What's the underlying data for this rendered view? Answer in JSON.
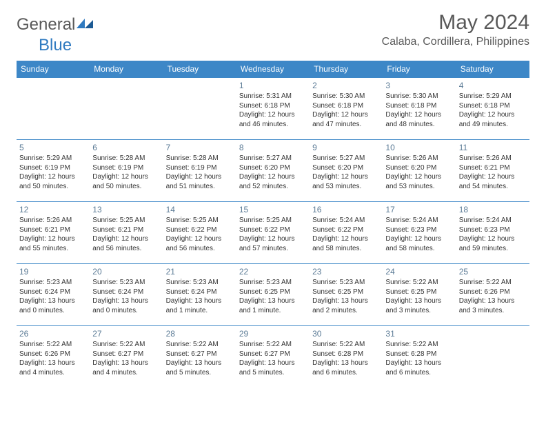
{
  "brand": {
    "general": "General",
    "blue": "Blue"
  },
  "title": "May 2024",
  "location": "Calaba, Cordillera, Philippines",
  "colors": {
    "header_bg": "#3d87c7",
    "header_text": "#ffffff",
    "grid_line": "#3d87c7",
    "text": "#333333",
    "title_text": "#595959",
    "daynum_text": "#5a7a95",
    "brand_blue": "#2f7ac0",
    "background": "#ffffff"
  },
  "typography": {
    "title_fontsize": 30,
    "location_fontsize": 16,
    "weekday_fontsize": 12,
    "daynum_fontsize": 12,
    "info_fontsize": 10
  },
  "weekdays": [
    "Sunday",
    "Monday",
    "Tuesday",
    "Wednesday",
    "Thursday",
    "Friday",
    "Saturday"
  ],
  "weeks": [
    [
      null,
      null,
      null,
      {
        "d": "1",
        "sr": "5:31 AM",
        "ss": "6:18 PM",
        "dl": "12 hours and 46 minutes."
      },
      {
        "d": "2",
        "sr": "5:30 AM",
        "ss": "6:18 PM",
        "dl": "12 hours and 47 minutes."
      },
      {
        "d": "3",
        "sr": "5:30 AM",
        "ss": "6:18 PM",
        "dl": "12 hours and 48 minutes."
      },
      {
        "d": "4",
        "sr": "5:29 AM",
        "ss": "6:18 PM",
        "dl": "12 hours and 49 minutes."
      }
    ],
    [
      {
        "d": "5",
        "sr": "5:29 AM",
        "ss": "6:19 PM",
        "dl": "12 hours and 50 minutes."
      },
      {
        "d": "6",
        "sr": "5:28 AM",
        "ss": "6:19 PM",
        "dl": "12 hours and 50 minutes."
      },
      {
        "d": "7",
        "sr": "5:28 AM",
        "ss": "6:19 PM",
        "dl": "12 hours and 51 minutes."
      },
      {
        "d": "8",
        "sr": "5:27 AM",
        "ss": "6:20 PM",
        "dl": "12 hours and 52 minutes."
      },
      {
        "d": "9",
        "sr": "5:27 AM",
        "ss": "6:20 PM",
        "dl": "12 hours and 53 minutes."
      },
      {
        "d": "10",
        "sr": "5:26 AM",
        "ss": "6:20 PM",
        "dl": "12 hours and 53 minutes."
      },
      {
        "d": "11",
        "sr": "5:26 AM",
        "ss": "6:21 PM",
        "dl": "12 hours and 54 minutes."
      }
    ],
    [
      {
        "d": "12",
        "sr": "5:26 AM",
        "ss": "6:21 PM",
        "dl": "12 hours and 55 minutes."
      },
      {
        "d": "13",
        "sr": "5:25 AM",
        "ss": "6:21 PM",
        "dl": "12 hours and 56 minutes."
      },
      {
        "d": "14",
        "sr": "5:25 AM",
        "ss": "6:22 PM",
        "dl": "12 hours and 56 minutes."
      },
      {
        "d": "15",
        "sr": "5:25 AM",
        "ss": "6:22 PM",
        "dl": "12 hours and 57 minutes."
      },
      {
        "d": "16",
        "sr": "5:24 AM",
        "ss": "6:22 PM",
        "dl": "12 hours and 58 minutes."
      },
      {
        "d": "17",
        "sr": "5:24 AM",
        "ss": "6:23 PM",
        "dl": "12 hours and 58 minutes."
      },
      {
        "d": "18",
        "sr": "5:24 AM",
        "ss": "6:23 PM",
        "dl": "12 hours and 59 minutes."
      }
    ],
    [
      {
        "d": "19",
        "sr": "5:23 AM",
        "ss": "6:24 PM",
        "dl": "13 hours and 0 minutes."
      },
      {
        "d": "20",
        "sr": "5:23 AM",
        "ss": "6:24 PM",
        "dl": "13 hours and 0 minutes."
      },
      {
        "d": "21",
        "sr": "5:23 AM",
        "ss": "6:24 PM",
        "dl": "13 hours and 1 minute."
      },
      {
        "d": "22",
        "sr": "5:23 AM",
        "ss": "6:25 PM",
        "dl": "13 hours and 1 minute."
      },
      {
        "d": "23",
        "sr": "5:23 AM",
        "ss": "6:25 PM",
        "dl": "13 hours and 2 minutes."
      },
      {
        "d": "24",
        "sr": "5:22 AM",
        "ss": "6:25 PM",
        "dl": "13 hours and 3 minutes."
      },
      {
        "d": "25",
        "sr": "5:22 AM",
        "ss": "6:26 PM",
        "dl": "13 hours and 3 minutes."
      }
    ],
    [
      {
        "d": "26",
        "sr": "5:22 AM",
        "ss": "6:26 PM",
        "dl": "13 hours and 4 minutes."
      },
      {
        "d": "27",
        "sr": "5:22 AM",
        "ss": "6:27 PM",
        "dl": "13 hours and 4 minutes."
      },
      {
        "d": "28",
        "sr": "5:22 AM",
        "ss": "6:27 PM",
        "dl": "13 hours and 5 minutes."
      },
      {
        "d": "29",
        "sr": "5:22 AM",
        "ss": "6:27 PM",
        "dl": "13 hours and 5 minutes."
      },
      {
        "d": "30",
        "sr": "5:22 AM",
        "ss": "6:28 PM",
        "dl": "13 hours and 6 minutes."
      },
      {
        "d": "31",
        "sr": "5:22 AM",
        "ss": "6:28 PM",
        "dl": "13 hours and 6 minutes."
      },
      null
    ]
  ],
  "labels": {
    "sunrise": "Sunrise: ",
    "sunset": "Sunset: ",
    "daylight": "Daylight: "
  }
}
